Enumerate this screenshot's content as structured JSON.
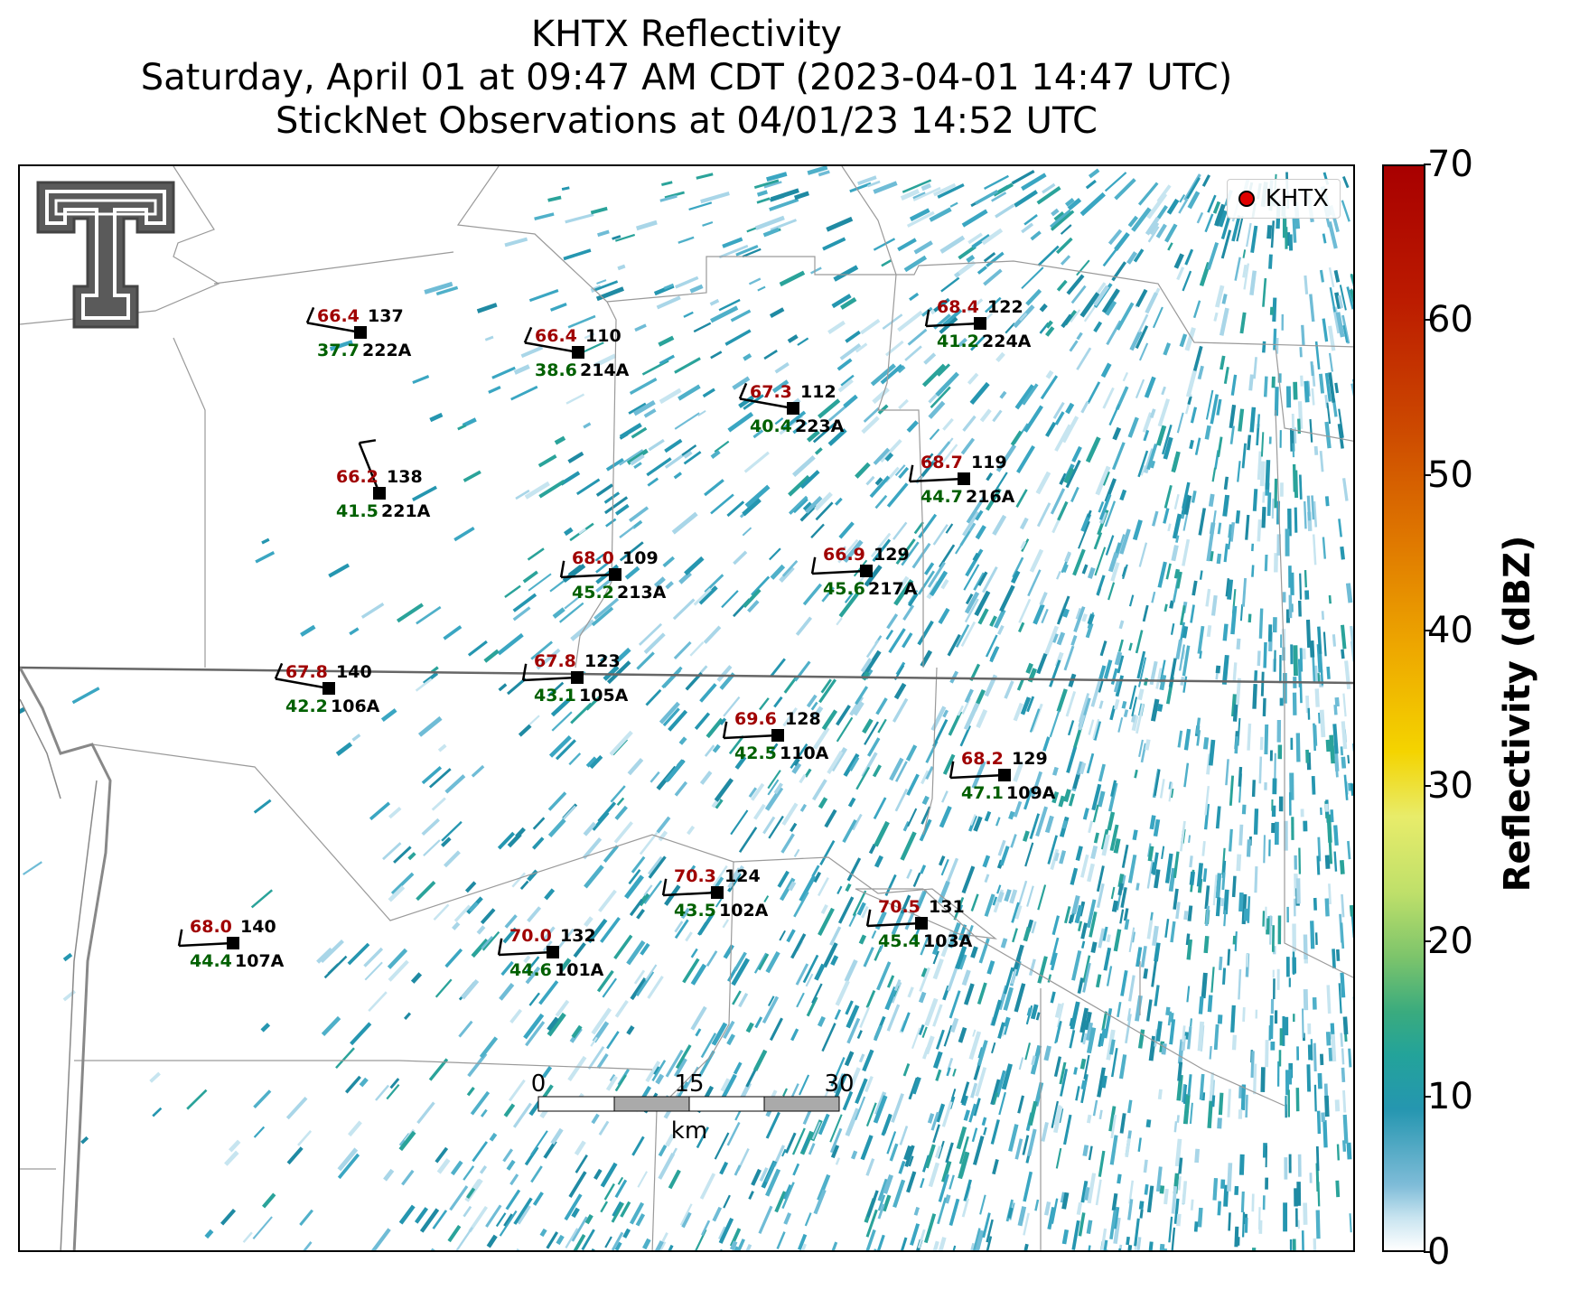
{
  "title": {
    "line1": "KHTX Reflectivity",
    "line2": "Saturday, April 01 at 09:47 AM CDT (2023-04-01 14:47 UTC)",
    "line3": "StickNet Observations at 04/01/23 14:52 UTC"
  },
  "legend": {
    "label": "KHTX",
    "marker_color": "#e00000"
  },
  "colorbar": {
    "label": "Reflectivity (dBZ)",
    "ticks": [
      "0",
      "10",
      "20",
      "30",
      "40",
      "50",
      "60",
      "70"
    ],
    "range": [
      0,
      70
    ]
  },
  "scalebar": {
    "labels": [
      "0",
      "15",
      "30"
    ],
    "unit": "km"
  },
  "colors": {
    "temperature": "#a00000",
    "dewpoint": "#006000",
    "station": "#000000",
    "radar_echo": "#2596b0"
  },
  "stations": [
    {
      "id": "222A",
      "temp": "66.4",
      "dew": "37.7",
      "pres": "137"
    },
    {
      "id": "214A",
      "temp": "66.4",
      "dew": "38.6",
      "pres": "110"
    },
    {
      "id": "224A",
      "temp": "68.4",
      "dew": "41.2",
      "pres": "122"
    },
    {
      "id": "223A",
      "temp": "67.3",
      "dew": "40.4",
      "pres": "112"
    },
    {
      "id": "221A",
      "temp": "66.2",
      "dew": "41.5",
      "pres": "138"
    },
    {
      "id": "216A",
      "temp": "68.7",
      "dew": "44.7",
      "pres": "119"
    },
    {
      "id": "213A",
      "temp": "68.0",
      "dew": "45.2",
      "pres": "109"
    },
    {
      "id": "217A",
      "temp": "66.9",
      "dew": "45.6",
      "pres": "129"
    },
    {
      "id": "106A",
      "temp": "67.8",
      "dew": "42.2",
      "pres": "140"
    },
    {
      "id": "105A",
      "temp": "67.8",
      "dew": "43.1",
      "pres": "123"
    },
    {
      "id": "110A",
      "temp": "69.6",
      "dew": "42.5",
      "pres": "128"
    },
    {
      "id": "109A",
      "temp": "68.2",
      "dew": "47.1",
      "pres": "129"
    },
    {
      "id": "102A",
      "temp": "70.3",
      "dew": "43.5",
      "pres": "124"
    },
    {
      "id": "103A",
      "temp": "70.5",
      "dew": "45.4",
      "pres": "131"
    },
    {
      "id": "107A",
      "temp": "68.0",
      "dew": "44.4",
      "pres": "140"
    },
    {
      "id": "101A",
      "temp": "70.0",
      "dew": "44.6",
      "pres": "132"
    }
  ]
}
